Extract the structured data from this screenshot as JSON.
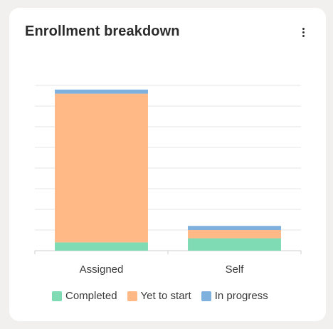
{
  "card": {
    "title": "Enrollment breakdown",
    "menu_icon": "more-vertical-icon"
  },
  "chart_data": {
    "type": "bar",
    "stacked": true,
    "categories": [
      "Assigned",
      "Self"
    ],
    "series": [
      {
        "name": "Completed",
        "color": "#7fdbb4",
        "values": [
          4,
          6
        ]
      },
      {
        "name": "Yet to start",
        "color": "#ffb987",
        "values": [
          72,
          4
        ]
      },
      {
        "name": "In progress",
        "color": "#7eb1dd",
        "values": [
          2,
          2
        ]
      }
    ],
    "ylim": [
      0,
      80
    ],
    "grid": true,
    "legend_position": "bottom"
  },
  "legend": {
    "items": [
      {
        "label": "Completed",
        "color": "#7fdbb4"
      },
      {
        "label": "Yet to start",
        "color": "#ffb987"
      },
      {
        "label": "In progress",
        "color": "#7eb1dd"
      }
    ]
  }
}
